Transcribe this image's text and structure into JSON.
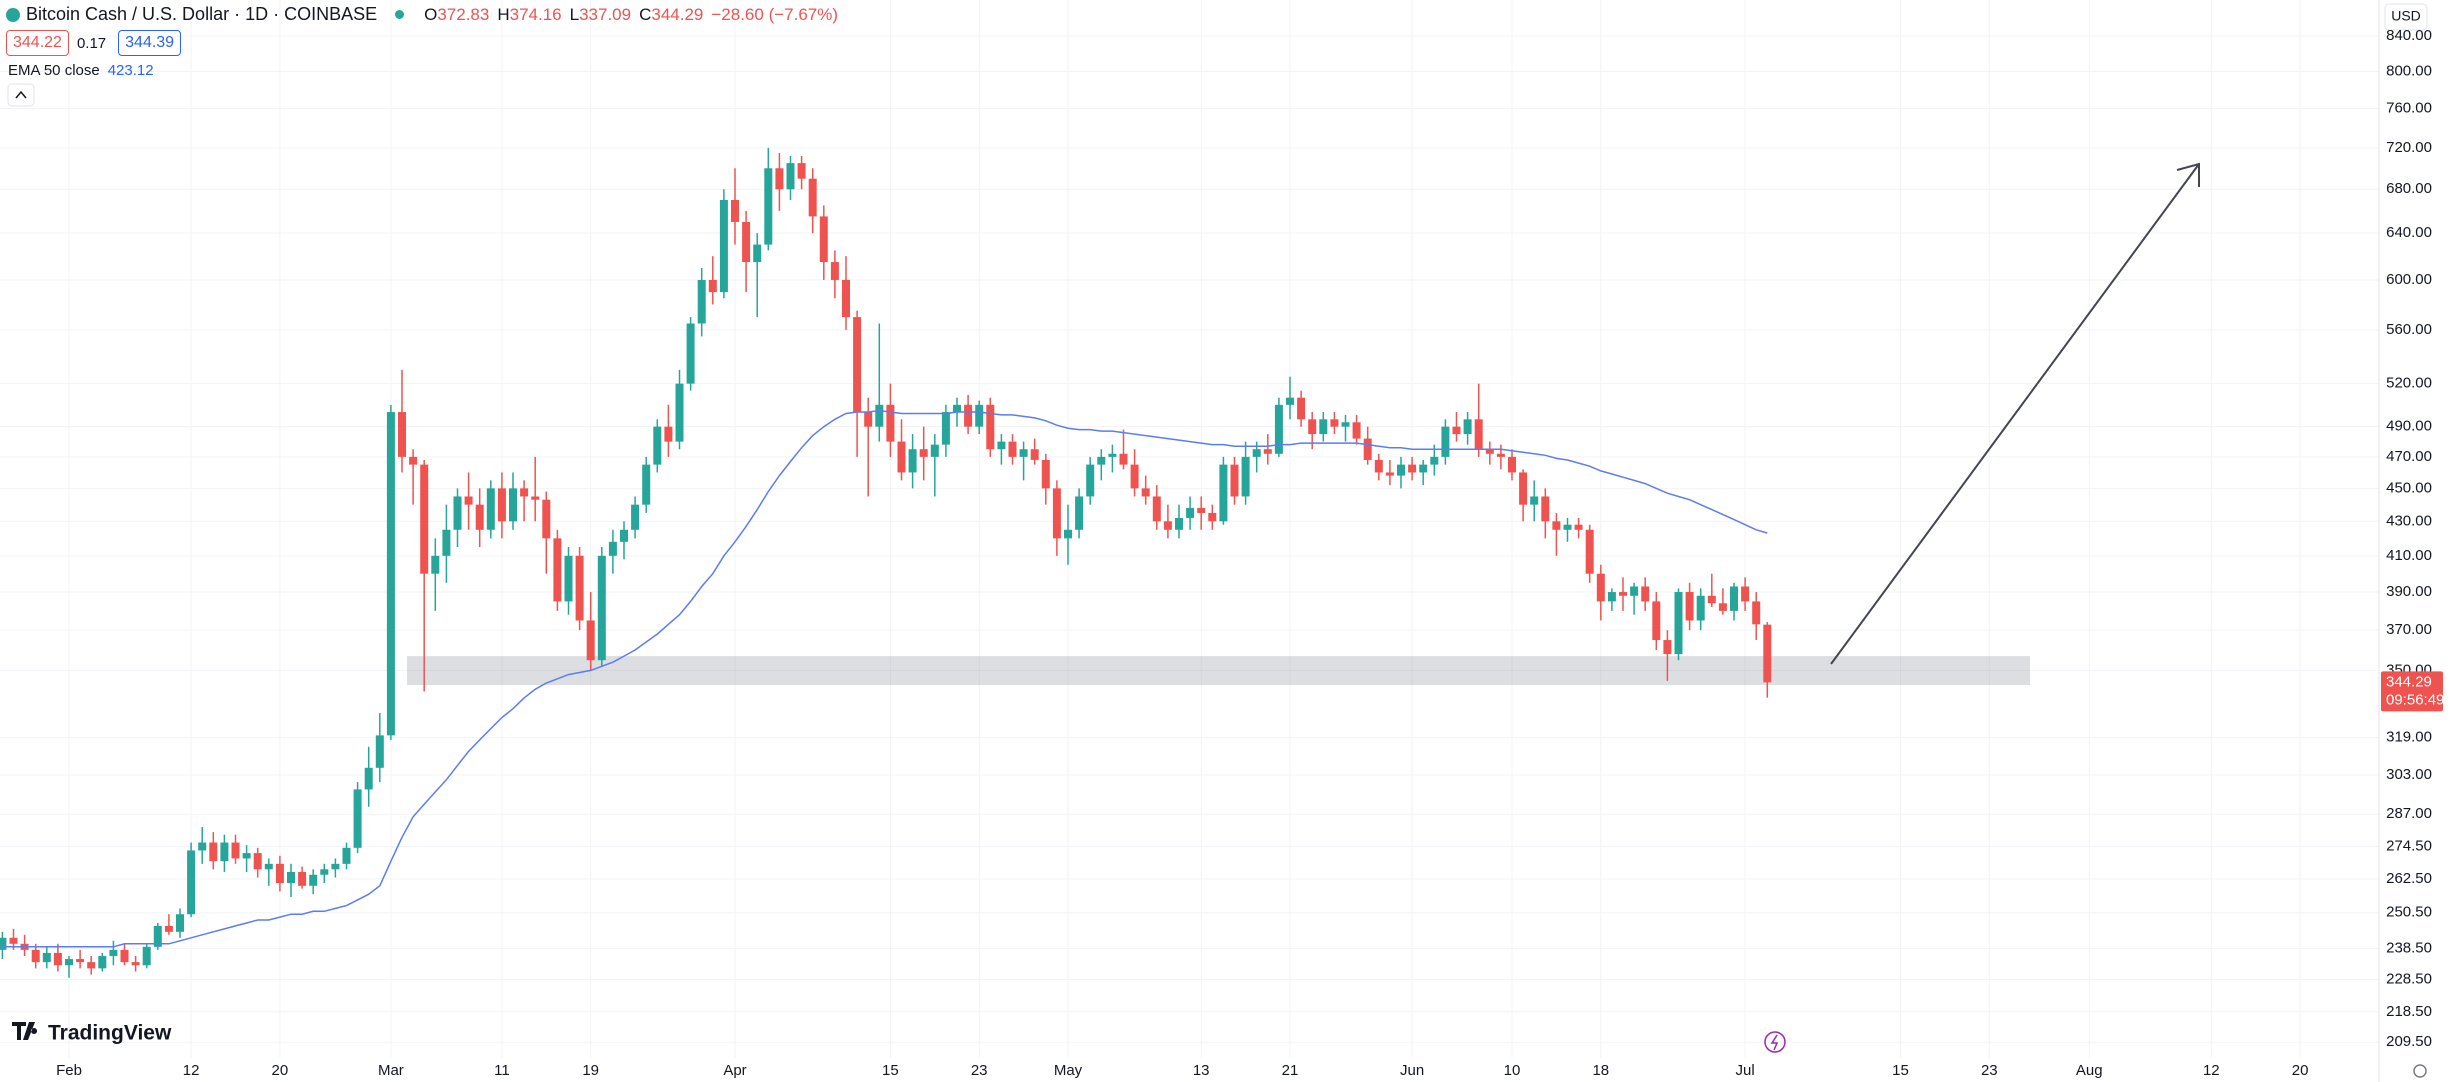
{
  "header": {
    "symbol": "Bitcoin Cash / U.S. Dollar · 1D · COINBASE",
    "o": "O",
    "h": "H",
    "l": "L",
    "c": "C",
    "change": "−28.60 (−7.67%)",
    "bid": 344.22,
    "spread": 0.17,
    "ask": 344.39
  },
  "currency": "USD",
  "logo": "TradingView",
  "countdown": "09:56:49",
  "chart_data": {
    "type": "candlestick",
    "log_scale": true,
    "grid": true,
    "up_color": "#26a69a",
    "down_color": "#ef5350",
    "x": [
      "Jan 26",
      "Jan 27",
      "Jan 28",
      "Jan 29",
      "Jan 30",
      "Jan 31",
      "Feb 1",
      "Feb 2",
      "Feb 3",
      "Feb 4",
      "Feb 5",
      "Feb 6",
      "Feb 7",
      "Feb 8",
      "Feb 9",
      "Feb 10",
      "Feb 11",
      "Feb 12",
      "Feb 13",
      "Feb 14",
      "Feb 15",
      "Feb 16",
      "Feb 17",
      "Feb 18",
      "Feb 19",
      "Feb 20",
      "Feb 21",
      "Feb 22",
      "Feb 23",
      "Feb 24",
      "Feb 25",
      "Feb 26",
      "Feb 27",
      "Feb 28",
      "Feb 29",
      "Mar 1",
      "Mar 2",
      "Mar 3",
      "Mar 4",
      "Mar 5",
      "Mar 6",
      "Mar 7",
      "Mar 8",
      "Mar 9",
      "Mar 10",
      "Mar 11",
      "Mar 12",
      "Mar 13",
      "Mar 14",
      "Mar 15",
      "Mar 16",
      "Mar 17",
      "Mar 18",
      "Mar 19",
      "Mar 20",
      "Mar 21",
      "Mar 22",
      "Mar 23",
      "Mar 24",
      "Mar 25",
      "Mar 26",
      "Mar 27",
      "Mar 28",
      "Mar 29",
      "Mar 30",
      "Mar 31",
      "Apr 1",
      "Apr 2",
      "Apr 3",
      "Apr 4",
      "Apr 5",
      "Apr 6",
      "Apr 7",
      "Apr 8",
      "Apr 9",
      "Apr 10",
      "Apr 11",
      "Apr 12",
      "Apr 13",
      "Apr 14",
      "Apr 15",
      "Apr 16",
      "Apr 17",
      "Apr 18",
      "Apr 19",
      "Apr 20",
      "Apr 21",
      "Apr 22",
      "Apr 23",
      "Apr 24",
      "Apr 25",
      "Apr 26",
      "Apr 27",
      "Apr 28",
      "Apr 29",
      "Apr 30",
      "May 1",
      "May 2",
      "May 3",
      "May 4",
      "May 5",
      "May 6",
      "May 7",
      "May 8",
      "May 9",
      "May 10",
      "May 11",
      "May 12",
      "May 13",
      "May 14",
      "May 15",
      "May 16",
      "May 17",
      "May 18",
      "May 19",
      "May 20",
      "May 21",
      "May 22",
      "May 23",
      "May 24",
      "May 25",
      "May 26",
      "May 27",
      "May 28",
      "May 29",
      "May 30",
      "May 31",
      "Jun 1",
      "Jun 2",
      "Jun 3",
      "Jun 4",
      "Jun 5",
      "Jun 6",
      "Jun 7",
      "Jun 8",
      "Jun 9",
      "Jun 10",
      "Jun 11",
      "Jun 12",
      "Jun 13",
      "Jun 14",
      "Jun 15",
      "Jun 16",
      "Jun 17",
      "Jun 18",
      "Jun 19",
      "Jun 20",
      "Jun 21",
      "Jun 22",
      "Jun 23",
      "Jun 24",
      "Jun 25",
      "Jun 26",
      "Jun 27",
      "Jun 28",
      "Jun 29",
      "Jun 30",
      "Jul 1",
      "Jul 2",
      "Jul 3"
    ],
    "ohlc": [
      [
        238,
        244,
        235,
        242
      ],
      [
        242,
        245,
        238,
        240
      ],
      [
        240,
        243,
        236,
        238
      ],
      [
        238,
        240,
        232,
        234
      ],
      [
        234,
        239,
        232,
        237
      ],
      [
        237,
        240,
        231,
        233
      ],
      [
        233,
        236,
        229,
        235
      ],
      [
        235,
        238,
        232,
        234
      ],
      [
        234,
        236,
        230,
        232
      ],
      [
        232,
        237,
        231,
        236
      ],
      [
        236,
        241,
        233,
        238
      ],
      [
        238,
        240,
        233,
        234
      ],
      [
        234,
        236,
        231,
        233
      ],
      [
        233,
        240,
        232,
        239
      ],
      [
        239,
        247,
        238,
        246
      ],
      [
        246,
        250,
        243,
        244
      ],
      [
        244,
        252,
        242,
        250
      ],
      [
        250,
        276,
        249,
        273
      ],
      [
        273,
        282,
        268,
        276
      ],
      [
        276,
        280,
        266,
        269
      ],
      [
        269,
        279,
        265,
        276
      ],
      [
        276,
        279,
        268,
        270
      ],
      [
        270,
        275,
        265,
        272
      ],
      [
        272,
        274,
        263,
        266
      ],
      [
        266,
        270,
        260,
        268
      ],
      [
        268,
        271,
        258,
        261
      ],
      [
        261,
        268,
        256,
        265
      ],
      [
        265,
        267,
        259,
        260
      ],
      [
        260,
        266,
        257,
        264
      ],
      [
        264,
        268,
        261,
        266
      ],
      [
        266,
        270,
        263,
        268
      ],
      [
        268,
        276,
        266,
        274
      ],
      [
        274,
        300,
        272,
        297
      ],
      [
        297,
        315,
        290,
        306
      ],
      [
        306,
        330,
        300,
        320
      ],
      [
        320,
        505,
        318,
        500
      ],
      [
        500,
        530,
        460,
        470
      ],
      [
        470,
        475,
        440,
        465
      ],
      [
        465,
        468,
        340,
        400
      ],
      [
        400,
        420,
        380,
        410
      ],
      [
        410,
        440,
        395,
        425
      ],
      [
        425,
        450,
        415,
        445
      ],
      [
        445,
        460,
        425,
        440
      ],
      [
        440,
        450,
        415,
        425
      ],
      [
        425,
        455,
        420,
        450
      ],
      [
        450,
        460,
        420,
        430
      ],
      [
        430,
        460,
        425,
        450
      ],
      [
        450,
        455,
        430,
        445
      ],
      [
        445,
        470,
        430,
        443
      ],
      [
        443,
        448,
        400,
        420
      ],
      [
        420,
        425,
        380,
        385
      ],
      [
        385,
        415,
        378,
        410
      ],
      [
        410,
        415,
        370,
        375
      ],
      [
        375,
        390,
        350,
        355
      ],
      [
        355,
        415,
        352,
        410
      ],
      [
        410,
        425,
        400,
        418
      ],
      [
        418,
        430,
        408,
        425
      ],
      [
        425,
        445,
        420,
        440
      ],
      [
        440,
        470,
        435,
        465
      ],
      [
        465,
        495,
        460,
        490
      ],
      [
        490,
        505,
        470,
        480
      ],
      [
        480,
        530,
        475,
        520
      ],
      [
        520,
        570,
        515,
        565
      ],
      [
        565,
        610,
        555,
        600
      ],
      [
        600,
        620,
        580,
        590
      ],
      [
        590,
        680,
        585,
        670
      ],
      [
        670,
        700,
        630,
        650
      ],
      [
        650,
        660,
        590,
        615
      ],
      [
        615,
        640,
        570,
        630
      ],
      [
        630,
        720,
        625,
        700
      ],
      [
        700,
        715,
        660,
        680
      ],
      [
        680,
        712,
        670,
        705
      ],
      [
        705,
        712,
        680,
        690
      ],
      [
        690,
        700,
        640,
        655
      ],
      [
        655,
        665,
        600,
        615
      ],
      [
        615,
        625,
        585,
        600
      ],
      [
        600,
        620,
        560,
        570
      ],
      [
        570,
        575,
        470,
        500
      ],
      [
        500,
        510,
        445,
        490
      ],
      [
        490,
        565,
        480,
        505
      ],
      [
        505,
        520,
        470,
        480
      ],
      [
        480,
        495,
        455,
        460
      ],
      [
        460,
        485,
        450,
        475
      ],
      [
        475,
        490,
        455,
        470
      ],
      [
        470,
        485,
        445,
        478
      ],
      [
        478,
        505,
        470,
        500
      ],
      [
        500,
        510,
        490,
        505
      ],
      [
        505,
        512,
        485,
        490
      ],
      [
        490,
        508,
        485,
        505
      ],
      [
        505,
        510,
        470,
        475
      ],
      [
        475,
        485,
        465,
        480
      ],
      [
        480,
        485,
        465,
        470
      ],
      [
        470,
        480,
        455,
        475
      ],
      [
        475,
        482,
        465,
        468
      ],
      [
        468,
        472,
        440,
        450
      ],
      [
        450,
        455,
        410,
        420
      ],
      [
        420,
        440,
        405,
        425
      ],
      [
        425,
        450,
        420,
        445
      ],
      [
        445,
        470,
        440,
        465
      ],
      [
        465,
        475,
        455,
        470
      ],
      [
        470,
        478,
        460,
        472
      ],
      [
        472,
        488,
        462,
        465
      ],
      [
        465,
        475,
        445,
        450
      ],
      [
        450,
        458,
        440,
        445
      ],
      [
        445,
        452,
        425,
        430
      ],
      [
        430,
        440,
        420,
        425
      ],
      [
        425,
        440,
        420,
        432
      ],
      [
        432,
        445,
        425,
        438
      ],
      [
        438,
        445,
        425,
        435
      ],
      [
        435,
        440,
        425,
        430
      ],
      [
        430,
        470,
        428,
        465
      ],
      [
        465,
        470,
        440,
        445
      ],
      [
        445,
        480,
        440,
        470
      ],
      [
        470,
        480,
        460,
        475
      ],
      [
        475,
        485,
        465,
        472
      ],
      [
        472,
        510,
        470,
        505
      ],
      [
        505,
        525,
        495,
        510
      ],
      [
        510,
        515,
        490,
        495
      ],
      [
        495,
        500,
        475,
        485
      ],
      [
        485,
        500,
        480,
        495
      ],
      [
        495,
        500,
        485,
        490
      ],
      [
        490,
        498,
        480,
        493
      ],
      [
        493,
        498,
        478,
        482
      ],
      [
        482,
        490,
        465,
        468
      ],
      [
        468,
        472,
        455,
        460
      ],
      [
        460,
        468,
        452,
        458
      ],
      [
        458,
        470,
        450,
        465
      ],
      [
        465,
        470,
        455,
        460
      ],
      [
        460,
        468,
        452,
        465
      ],
      [
        465,
        478,
        458,
        470
      ],
      [
        470,
        495,
        465,
        490
      ],
      [
        490,
        500,
        480,
        485
      ],
      [
        485,
        500,
        478,
        495
      ],
      [
        495,
        520,
        470,
        475
      ],
      [
        475,
        480,
        465,
        472
      ],
      [
        472,
        478,
        462,
        470
      ],
      [
        470,
        475,
        455,
        460
      ],
      [
        460,
        462,
        430,
        440
      ],
      [
        440,
        455,
        430,
        445
      ],
      [
        445,
        450,
        420,
        430
      ],
      [
        430,
        435,
        410,
        425
      ],
      [
        425,
        432,
        418,
        428
      ],
      [
        428,
        432,
        420,
        425
      ],
      [
        425,
        428,
        395,
        400
      ],
      [
        400,
        405,
        375,
        385
      ],
      [
        385,
        392,
        380,
        390
      ],
      [
        390,
        398,
        380,
        388
      ],
      [
        388,
        395,
        378,
        393
      ],
      [
        393,
        398,
        380,
        385
      ],
      [
        385,
        390,
        360,
        365
      ],
      [
        365,
        370,
        345,
        358
      ],
      [
        358,
        392,
        355,
        390
      ],
      [
        390,
        395,
        370,
        375
      ],
      [
        375,
        392,
        370,
        388
      ],
      [
        388,
        400,
        382,
        384
      ],
      [
        384,
        392,
        378,
        380
      ],
      [
        380,
        395,
        375,
        393
      ],
      [
        393,
        398,
        380,
        385
      ],
      [
        385,
        390,
        365,
        373
      ],
      [
        372.83,
        374.16,
        337.09,
        344.29
      ]
    ],
    "series": [
      {
        "name": "EMA 50 close",
        "color": "#5b7cf5",
        "values": [
          239,
          239,
          239,
          239,
          239,
          239,
          239,
          239,
          239,
          239,
          239,
          240,
          240,
          240,
          240,
          240,
          241,
          242,
          243,
          244,
          245,
          246,
          247,
          248,
          248,
          249,
          250,
          250,
          251,
          251,
          252,
          253,
          255,
          257,
          260,
          269,
          278,
          286,
          291,
          296,
          301,
          307,
          313,
          318,
          323,
          328,
          332,
          337,
          341,
          344,
          346,
          348,
          349,
          350,
          352,
          354,
          357,
          360,
          364,
          368,
          373,
          378,
          385,
          393,
          400,
          410,
          418,
          427,
          437,
          448,
          458,
          467,
          476,
          484,
          490,
          495,
          499,
          500,
          500,
          501,
          500,
          499,
          499,
          499,
          499,
          499,
          500,
          500,
          500,
          499,
          498,
          498,
          497,
          496,
          494,
          491,
          489,
          488,
          488,
          487,
          487,
          486,
          485,
          484,
          483,
          482,
          481,
          480,
          479,
          478,
          478,
          477,
          477,
          477,
          477,
          478,
          478,
          479,
          479,
          479,
          479,
          479,
          479,
          478,
          477,
          476,
          476,
          475,
          475,
          475,
          475,
          475,
          475,
          475,
          475,
          475,
          474,
          473,
          472,
          471,
          469,
          468,
          466,
          464,
          461,
          459,
          457,
          455,
          453,
          450,
          447,
          445,
          443,
          440,
          437,
          434,
          431,
          428,
          425,
          423.12
        ]
      }
    ],
    "zone": [
      343,
      357
    ],
    "ylim": [
      205,
      883
    ],
    "yticks": [
      {
        "value": 840,
        "label": "840.00"
      },
      {
        "value": 800,
        "label": "800.00"
      },
      {
        "value": 760,
        "label": "760.00"
      },
      {
        "value": 720,
        "label": "720.00"
      },
      {
        "value": 680,
        "label": "680.00"
      },
      {
        "value": 640,
        "label": "640.00"
      },
      {
        "value": 600,
        "label": "600.00"
      },
      {
        "value": 560,
        "label": "560.00"
      },
      {
        "value": 520,
        "label": "520.00"
      },
      {
        "value": 490,
        "label": "490.00"
      },
      {
        "value": 470,
        "label": "470.00"
      },
      {
        "value": 450,
        "label": "450.00"
      },
      {
        "value": 430,
        "label": "430.00"
      },
      {
        "value": 410,
        "label": "410.00"
      },
      {
        "value": 390,
        "label": "390.00"
      },
      {
        "value": 370,
        "label": "370.00"
      },
      {
        "value": 350,
        "label": "350.00"
      },
      {
        "value": 319,
        "label": "319.00"
      },
      {
        "value": 303,
        "label": "303.00"
      },
      {
        "value": 287,
        "label": "287.00"
      },
      {
        "value": 274.5,
        "label": "274.50"
      },
      {
        "value": 262.5,
        "label": "262.50"
      },
      {
        "value": 250.5,
        "label": "250.50"
      },
      {
        "value": 238.5,
        "label": "238.50"
      },
      {
        "value": 228.5,
        "label": "228.50"
      },
      {
        "value": 218.5,
        "label": "218.50"
      },
      {
        "value": 209.5,
        "label": "209.50"
      }
    ],
    "xticks": [
      {
        "value": "Feb 1",
        "label": "Feb"
      },
      {
        "value": "Feb 12",
        "label": "12"
      },
      {
        "value": "Feb 20",
        "label": "20"
      },
      {
        "value": "Mar 1",
        "label": "Mar"
      },
      {
        "value": "Mar 11",
        "label": "11"
      },
      {
        "value": "Mar 19",
        "label": "19"
      },
      {
        "value": "Apr 1",
        "label": "Apr"
      },
      {
        "value": "Apr 15",
        "label": "15"
      },
      {
        "value": "Apr 23",
        "label": "23"
      },
      {
        "value": "May 1",
        "label": "May"
      },
      {
        "value": "May 13",
        "label": "13"
      },
      {
        "value": "May 21",
        "label": "21"
      },
      {
        "value": "Jun 1",
        "label": "Jun"
      },
      {
        "value": "Jun 10",
        "label": "10"
      },
      {
        "value": "Jun 18",
        "label": "18"
      },
      {
        "value": "Jul 1",
        "label": "Jul"
      },
      {
        "value": "Jul 15",
        "label": "15"
      },
      {
        "value": "Jul 23",
        "label": "23"
      },
      {
        "value": "Aug 1",
        "label": "Aug"
      },
      {
        "value": "Aug 12",
        "label": "12"
      },
      {
        "value": "Aug 20",
        "label": "20"
      }
    ]
  }
}
